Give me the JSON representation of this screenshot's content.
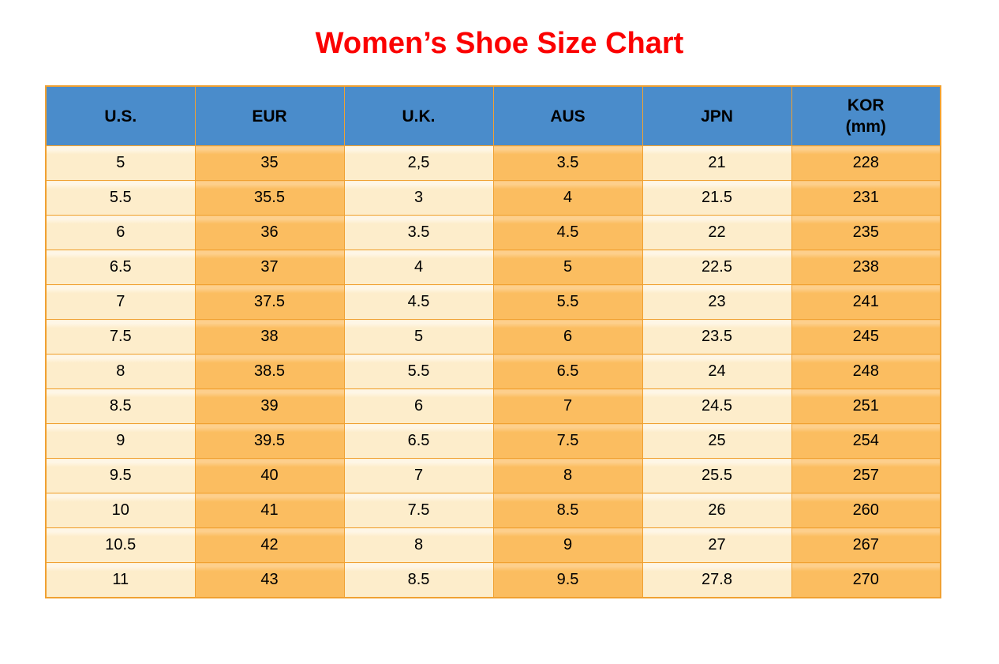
{
  "title": "Women’s Shoe Size Chart",
  "colors": {
    "title_red": "#fb0101",
    "header_blue": "#4a8ccb",
    "cell_cream": "#fdedcb",
    "cell_orange": "#fbbd60",
    "border_orange": "#f0a132",
    "text_black": "#000000"
  },
  "table": {
    "columns": [
      {
        "label": "U.S."
      },
      {
        "label": "EUR"
      },
      {
        "label": "U.K."
      },
      {
        "label": "AUS"
      },
      {
        "label": "JPN"
      },
      {
        "label": "KOR",
        "sublabel": "(mm)"
      }
    ]
  },
  "chart_data": {
    "type": "table",
    "title": "Women’s Shoe Size Chart",
    "columns": [
      "U.S.",
      "EUR",
      "U.K.",
      "AUS",
      "JPN",
      "KOR (mm)"
    ],
    "rows": [
      [
        "5",
        "35",
        "2,5",
        "3.5",
        "21",
        "228"
      ],
      [
        "5.5",
        "35.5",
        "3",
        "4",
        "21.5",
        "231"
      ],
      [
        "6",
        "36",
        "3.5",
        "4.5",
        "22",
        "235"
      ],
      [
        "6.5",
        "37",
        "4",
        "5",
        "22.5",
        "238"
      ],
      [
        "7",
        "37.5",
        "4.5",
        "5.5",
        "23",
        "241"
      ],
      [
        "7.5",
        "38",
        "5",
        "6",
        "23.5",
        "245"
      ],
      [
        "8",
        "38.5",
        "5.5",
        "6.5",
        "24",
        "248"
      ],
      [
        "8.5",
        "39",
        "6",
        "7",
        "24.5",
        "251"
      ],
      [
        "9",
        "39.5",
        "6.5",
        "7.5",
        "25",
        "254"
      ],
      [
        "9.5",
        "40",
        "7",
        "8",
        "25.5",
        "257"
      ],
      [
        "10",
        "41",
        "7.5",
        "8.5",
        "26",
        "260"
      ],
      [
        "10.5",
        "42",
        "8",
        "9",
        "27",
        "267"
      ],
      [
        "11",
        "43",
        "8.5",
        "9.5",
        "27.8",
        "270"
      ]
    ]
  }
}
